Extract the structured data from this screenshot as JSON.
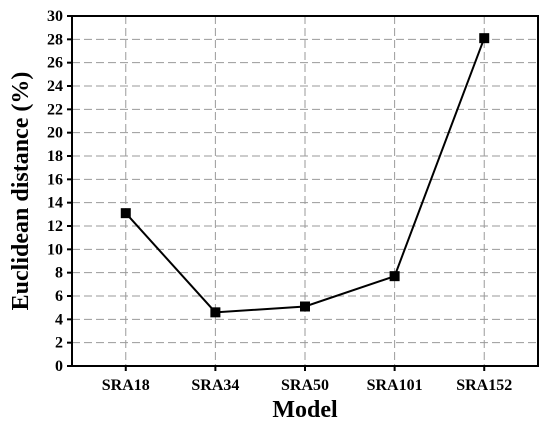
{
  "chart_data": {
    "type": "line",
    "categories": [
      "SRA18",
      "SRA34",
      "SRA50",
      "SRA101",
      "SRA152"
    ],
    "series": [
      {
        "values": [
          13.1,
          4.6,
          5.1,
          7.7,
          28.1
        ]
      }
    ],
    "xlabel": "Model",
    "ylabel": "Euclidean distance (%)",
    "ylim": [
      0,
      30
    ],
    "yticks": [
      0,
      2,
      4,
      6,
      8,
      10,
      12,
      14,
      16,
      18,
      20,
      22,
      24,
      26,
      28,
      30
    ],
    "grid": true,
    "marker": "square",
    "colors": {
      "line": "#000000",
      "marker": "#000000",
      "grid": "#9a9a9a"
    }
  }
}
